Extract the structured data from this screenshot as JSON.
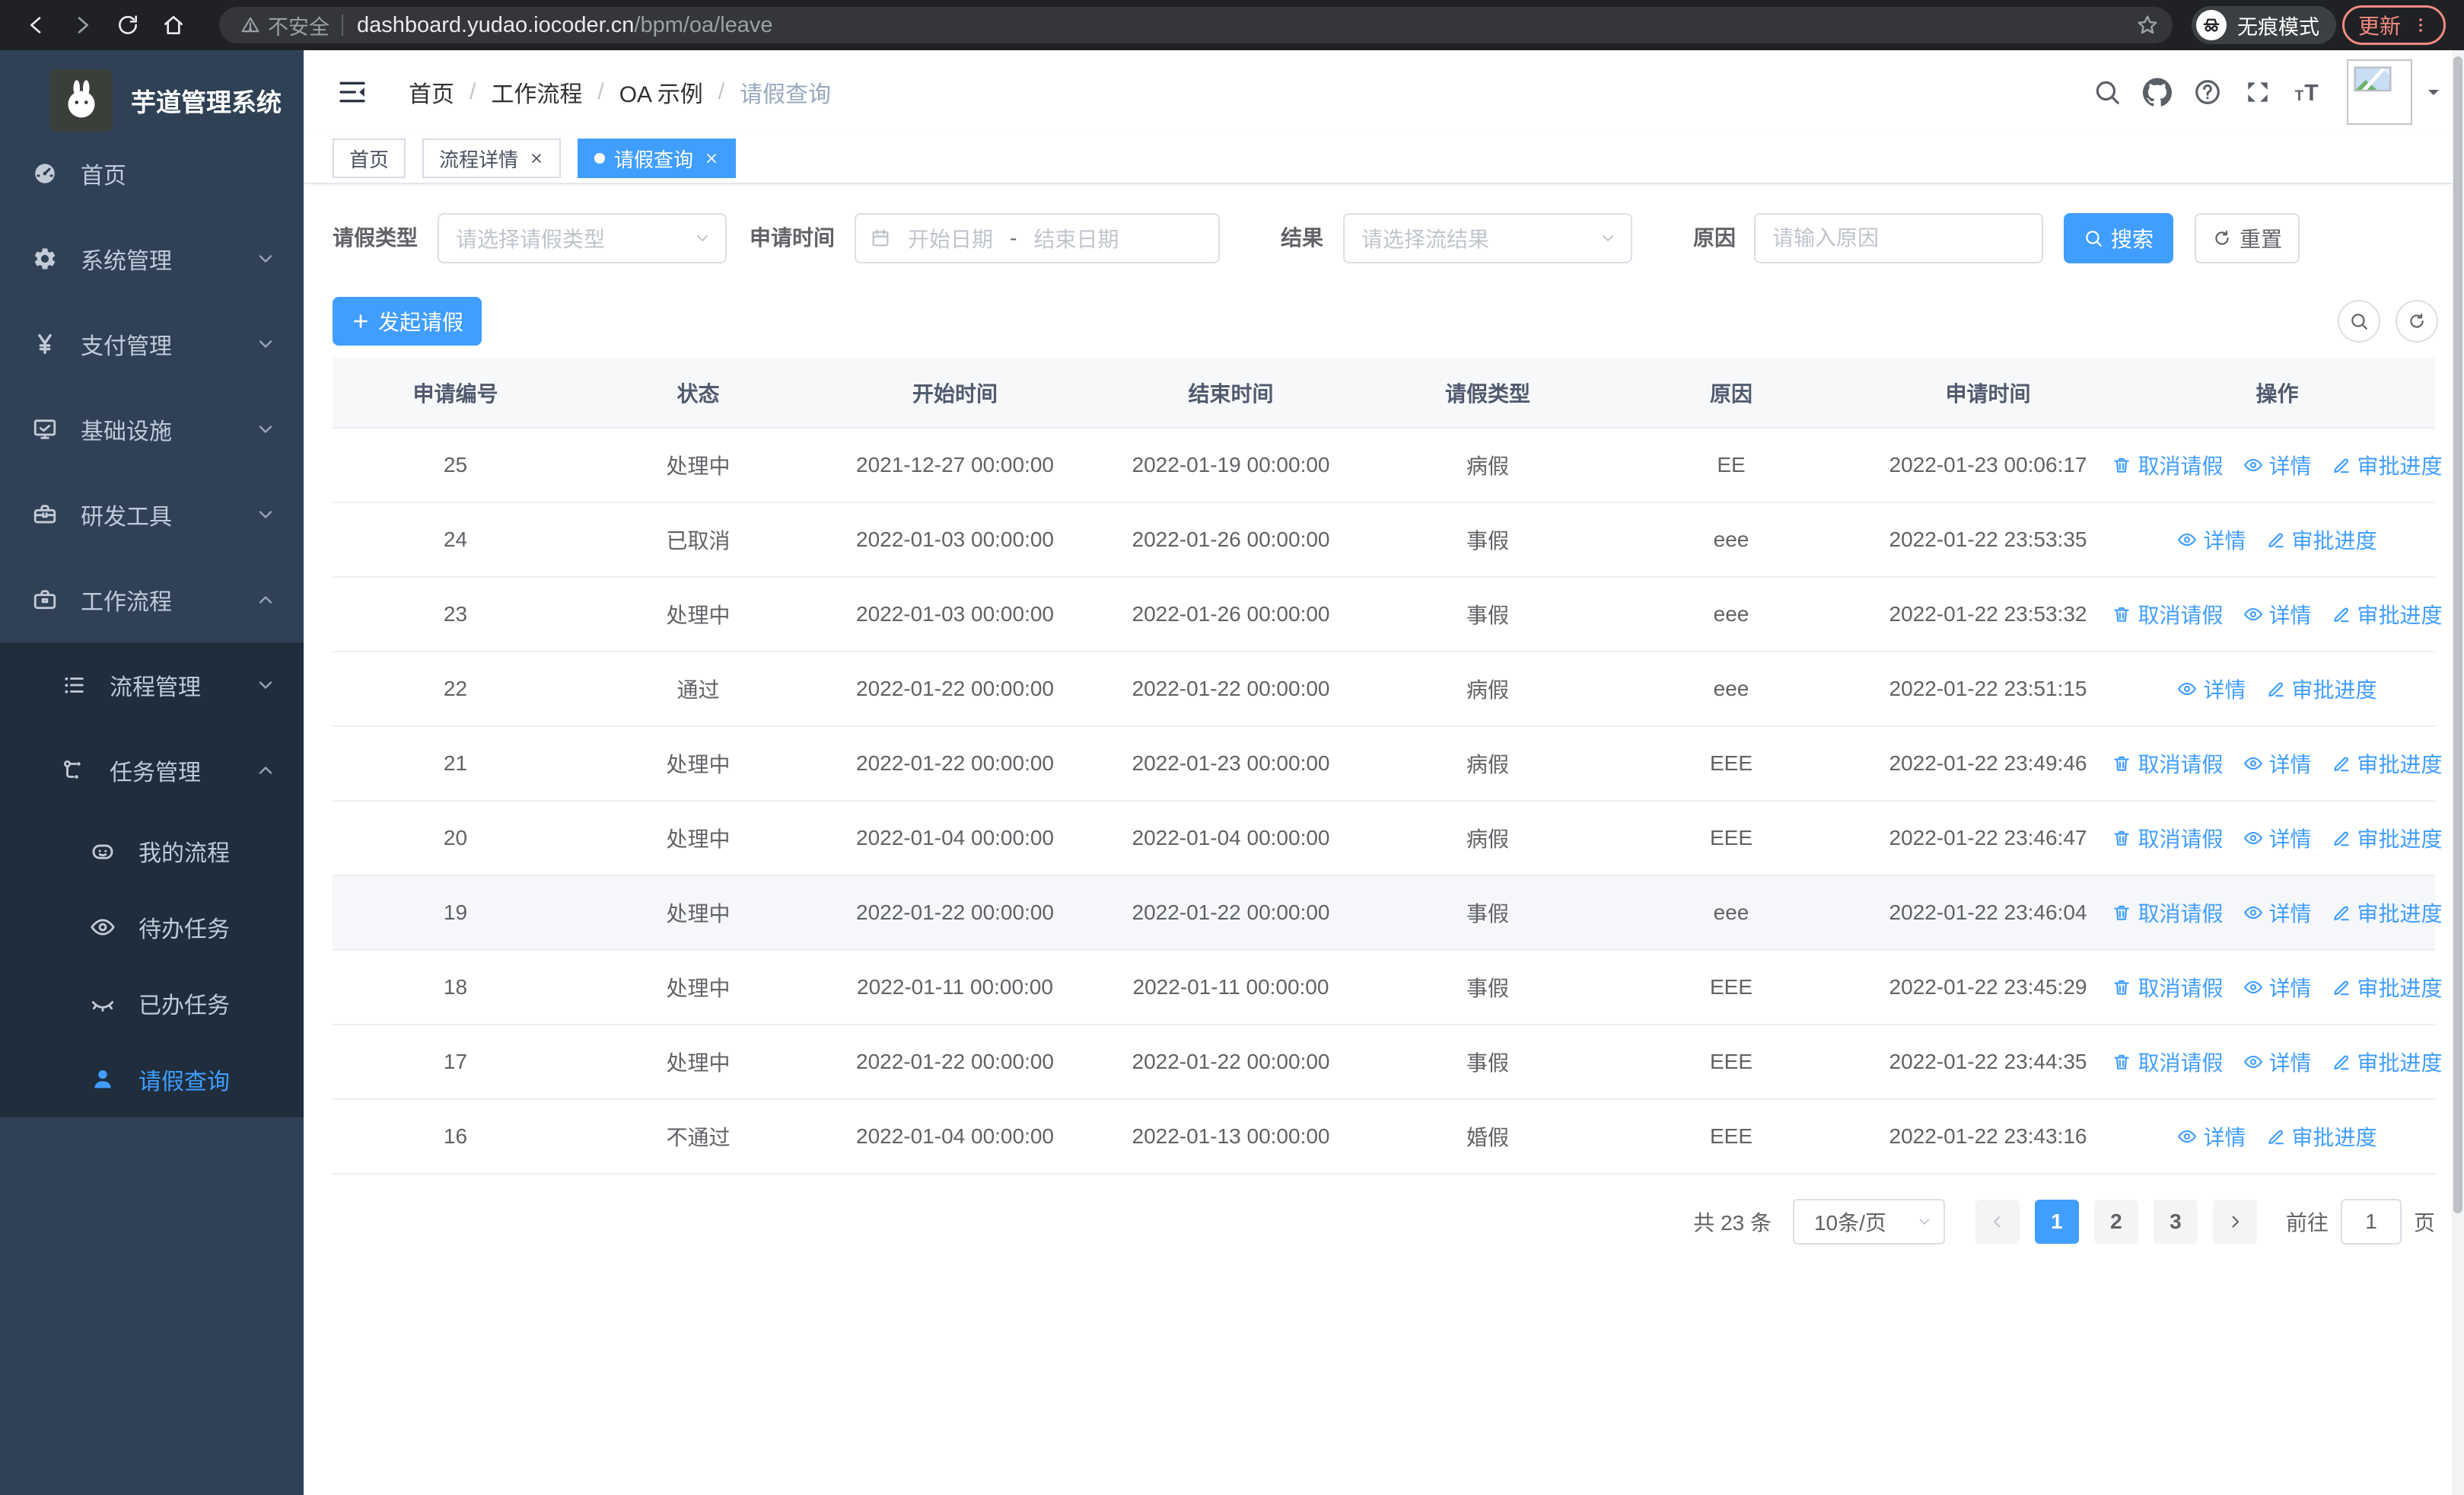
{
  "browser": {
    "security_label": "不安全",
    "url_host": "dashboard.yudao.iocoder.cn",
    "url_path": "/bpm/oa/leave",
    "incognito_label": "无痕模式",
    "update_label": "更新"
  },
  "sidebar": {
    "logo_title": "芋道管理系统",
    "items": [
      {
        "label": "首页",
        "icon": "dashboard",
        "level": 1,
        "arrow": "",
        "active": false
      },
      {
        "label": "系统管理",
        "icon": "gear",
        "level": 1,
        "arrow": "chevron-down",
        "active": false
      },
      {
        "label": "支付管理",
        "icon": "yen",
        "level": 1,
        "arrow": "chevron-down",
        "active": false
      },
      {
        "label": "基础设施",
        "icon": "monitor",
        "level": 1,
        "arrow": "chevron-down",
        "active": false
      },
      {
        "label": "研发工具",
        "icon": "toolbox",
        "level": 1,
        "arrow": "chevron-down",
        "active": false
      },
      {
        "label": "工作流程",
        "icon": "briefcase",
        "level": 1,
        "arrow": "chevron-up",
        "active": false
      }
    ],
    "sub_items": [
      {
        "label": "流程管理",
        "icon": "list",
        "level": 2,
        "arrow": "chevron-down",
        "active": false
      },
      {
        "label": "任务管理",
        "icon": "flow",
        "level": 2,
        "arrow": "chevron-up",
        "active": false
      },
      {
        "label": "我的流程",
        "icon": "robot",
        "level": 3,
        "arrow": "",
        "active": false
      },
      {
        "label": "待办任务",
        "icon": "eye",
        "level": 3,
        "arrow": "",
        "active": false
      },
      {
        "label": "已办任务",
        "icon": "eye-closed",
        "level": 3,
        "arrow": "",
        "active": false
      },
      {
        "label": "请假查询",
        "icon": "user",
        "level": 3,
        "arrow": "",
        "active": true
      }
    ]
  },
  "header": {
    "breadcrumbs": [
      "首页",
      "工作流程",
      "OA 示例",
      "请假查询"
    ]
  },
  "tabs": [
    {
      "label": "首页",
      "closable": false,
      "active": false
    },
    {
      "label": "流程详情",
      "closable": true,
      "active": false
    },
    {
      "label": "请假查询",
      "closable": true,
      "active": true
    }
  ],
  "filters": {
    "leave_type_label": "请假类型",
    "leave_type_placeholder": "请选择请假类型",
    "apply_time_label": "申请时间",
    "start_placeholder": "开始日期",
    "range_separator": "-",
    "end_placeholder": "结束日期",
    "result_label": "结果",
    "result_placeholder": "请选择流结果",
    "reason_label": "原因",
    "reason_placeholder": "请输入原因",
    "search_label": "搜索",
    "reset_label": "重置"
  },
  "toolbar": {
    "create_label": "发起请假"
  },
  "table": {
    "columns": [
      "申请编号",
      "状态",
      "开始时间",
      "结束时间",
      "请假类型",
      "原因",
      "申请时间",
      "操作"
    ],
    "action_labels": {
      "cancel": "取消请假",
      "detail": "详情",
      "progress": "审批进度"
    },
    "rows": [
      {
        "id": "25",
        "status": "处理中",
        "start": "2021-12-27 00:00:00",
        "end": "2022-01-19 00:00:00",
        "type": "病假",
        "reason": "EE",
        "apply": "2022-01-23 00:06:17",
        "cancel": true,
        "highlight": false
      },
      {
        "id": "24",
        "status": "已取消",
        "start": "2022-01-03 00:00:00",
        "end": "2022-01-26 00:00:00",
        "type": "事假",
        "reason": "eee",
        "apply": "2022-01-22 23:53:35",
        "cancel": false,
        "highlight": false
      },
      {
        "id": "23",
        "status": "处理中",
        "start": "2022-01-03 00:00:00",
        "end": "2022-01-26 00:00:00",
        "type": "事假",
        "reason": "eee",
        "apply": "2022-01-22 23:53:32",
        "cancel": true,
        "highlight": false
      },
      {
        "id": "22",
        "status": "通过",
        "start": "2022-01-22 00:00:00",
        "end": "2022-01-22 00:00:00",
        "type": "病假",
        "reason": "eee",
        "apply": "2022-01-22 23:51:15",
        "cancel": false,
        "highlight": false
      },
      {
        "id": "21",
        "status": "处理中",
        "start": "2022-01-22 00:00:00",
        "end": "2022-01-23 00:00:00",
        "type": "病假",
        "reason": "EEE",
        "apply": "2022-01-22 23:49:46",
        "cancel": true,
        "highlight": false
      },
      {
        "id": "20",
        "status": "处理中",
        "start": "2022-01-04 00:00:00",
        "end": "2022-01-04 00:00:00",
        "type": "病假",
        "reason": "EEE",
        "apply": "2022-01-22 23:46:47",
        "cancel": true,
        "highlight": false
      },
      {
        "id": "19",
        "status": "处理中",
        "start": "2022-01-22 00:00:00",
        "end": "2022-01-22 00:00:00",
        "type": "事假",
        "reason": "eee",
        "apply": "2022-01-22 23:46:04",
        "cancel": true,
        "highlight": true
      },
      {
        "id": "18",
        "status": "处理中",
        "start": "2022-01-11 00:00:00",
        "end": "2022-01-11 00:00:00",
        "type": "事假",
        "reason": "EEE",
        "apply": "2022-01-22 23:45:29",
        "cancel": true,
        "highlight": false
      },
      {
        "id": "17",
        "status": "处理中",
        "start": "2022-01-22 00:00:00",
        "end": "2022-01-22 00:00:00",
        "type": "事假",
        "reason": "EEE",
        "apply": "2022-01-22 23:44:35",
        "cancel": true,
        "highlight": false
      },
      {
        "id": "16",
        "status": "不通过",
        "start": "2022-01-04 00:00:00",
        "end": "2022-01-13 00:00:00",
        "type": "婚假",
        "reason": "EEE",
        "apply": "2022-01-22 23:43:16",
        "cancel": false,
        "highlight": false
      }
    ]
  },
  "pagination": {
    "total_label": "共 23 条",
    "page_size": "10条/页",
    "pages": [
      "1",
      "2",
      "3"
    ],
    "active_page": "1",
    "goto_label": "前往",
    "goto_value": "1",
    "page_unit": "页"
  },
  "colors": {
    "primary": "#409eff",
    "sidebar_bg": "#304156",
    "sidebar_sub_bg": "#1f2d3d",
    "chrome_bg": "#202124",
    "update_chip": "#f28b82"
  }
}
